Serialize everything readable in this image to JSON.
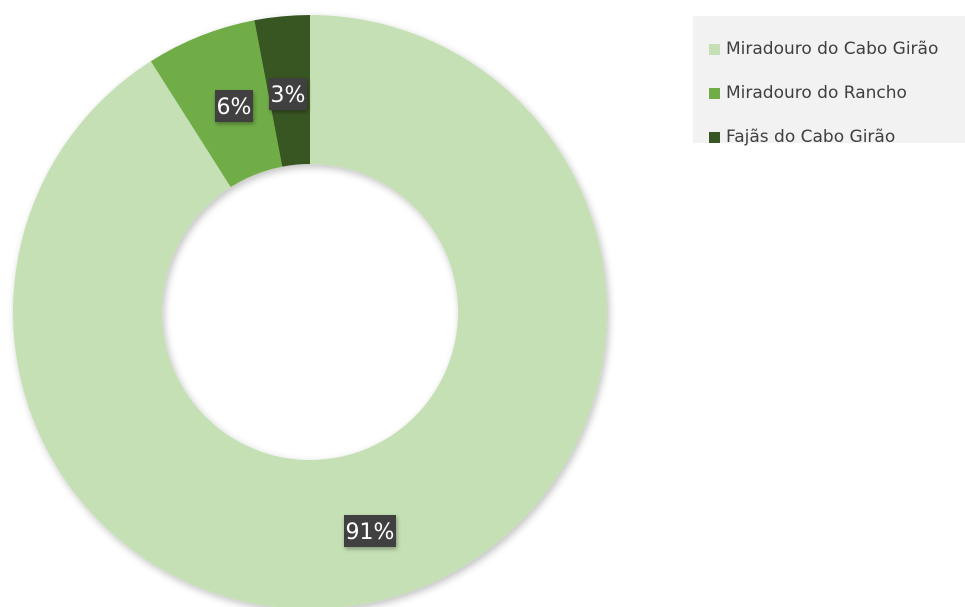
{
  "chart_data": {
    "type": "pie",
    "variant": "donut",
    "title": "",
    "categories": [
      "Miradouro do Cabo Girão",
      "Miradouro do Rancho",
      "Fajãs do Cabo Girão"
    ],
    "values": [
      91,
      6,
      3
    ],
    "labels": [
      "91%",
      "6%",
      "3%"
    ],
    "colors": [
      "#c5e0b4",
      "#70ad47",
      "#375623"
    ],
    "label_style": {
      "background": "#404040",
      "text_color": "#ffffff"
    },
    "legend": {
      "placement": "top-right",
      "items": [
        "Miradouro do Cabo Girão",
        "Miradouro do Rancho",
        "Fajãs do Cabo Girão"
      ]
    }
  }
}
